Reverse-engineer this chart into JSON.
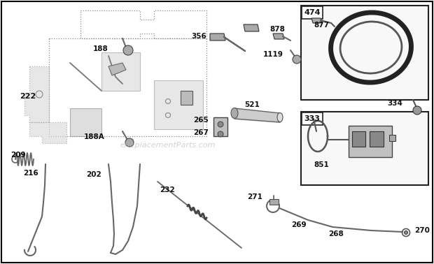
{
  "bg_color": "#ffffff",
  "border_color": "#000000",
  "watermark": "eReplacementParts.com",
  "fig_w": 6.2,
  "fig_h": 3.78,
  "dpi": 100
}
